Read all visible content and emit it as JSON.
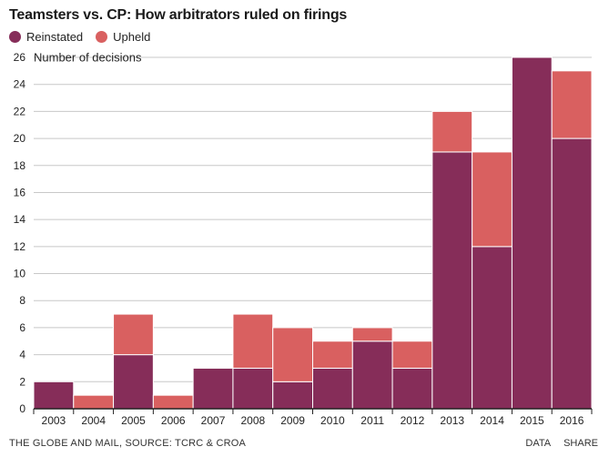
{
  "title": "Teamsters vs. CP: How arbitrators ruled on firings",
  "legend": [
    {
      "label": "Reinstated",
      "color": "#862d59"
    },
    {
      "label": "Upheld",
      "color": "#d96060"
    }
  ],
  "footer": {
    "source": "THE GLOBE AND MAIL, SOURCE: TCRC & CROA",
    "data_link": "DATA",
    "share_link": "SHARE"
  },
  "chart_data": {
    "type": "bar",
    "stacked": true,
    "categories": [
      "2003",
      "2004",
      "2005",
      "2006",
      "2007",
      "2008",
      "2009",
      "2010",
      "2011",
      "2012",
      "2013",
      "2014",
      "2015",
      "2016"
    ],
    "series": [
      {
        "name": "Reinstated",
        "color": "#862d59",
        "values": [
          2,
          0,
          4,
          0,
          3,
          3,
          2,
          3,
          5,
          3,
          19,
          12,
          26,
          20
        ]
      },
      {
        "name": "Upheld",
        "color": "#d96060",
        "values": [
          0,
          1,
          3,
          1,
          0,
          4,
          4,
          2,
          1,
          2,
          3,
          7,
          0,
          5
        ]
      }
    ],
    "ylabel": "Number of decisions",
    "ylim": [
      0,
      26
    ],
    "yticks": [
      0,
      2,
      4,
      6,
      8,
      10,
      12,
      14,
      16,
      18,
      20,
      22,
      24,
      26
    ],
    "grid": true
  }
}
